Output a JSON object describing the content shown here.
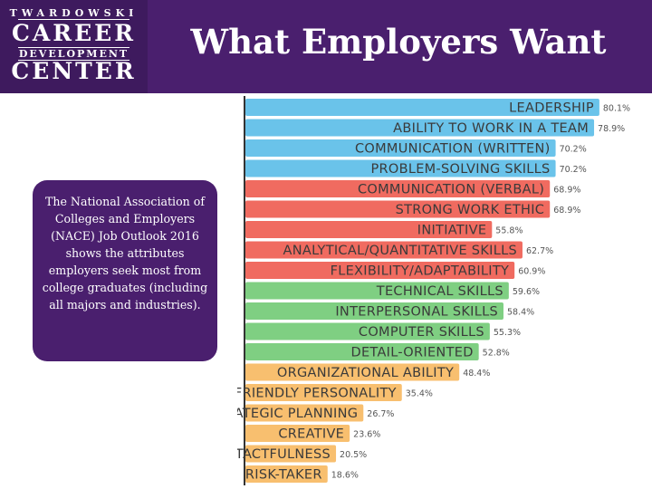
{
  "header": {
    "logo_lines": [
      "TWARDOWSKI",
      "CAREER",
      "DEVELOPMENT",
      "CENTER"
    ],
    "title": "What Employers Want"
  },
  "note": {
    "text": "The National Association of Colleges and Employers (NACE) Job Outlook 2016 shows the attributes employers seek most from college graduates (including all majors and industries)."
  },
  "colors": {
    "header": "#4a1f6e",
    "blue": "#6ac3ea",
    "red": "#f06b60",
    "green": "#7fcf82",
    "orange": "#f8bf6f"
  },
  "chart_data": {
    "type": "bar",
    "orientation": "horizontal",
    "categories": [
      "LEADERSHIP",
      "ABILITY TO WORK IN A TEAM",
      "COMMUNICATION (WRITTEN)",
      "PROBLEM-SOLVING SKILLS",
      "COMMUNICATION (VERBAL)",
      "STRONG WORK ETHIC",
      "INITIATIVE",
      "ANALYTICAL/QUANTITATIVE SKILLS",
      "FLEXIBILITY/ADAPTABILITY",
      "TECHNICAL SKILLS",
      "INTERPERSONAL SKILLS",
      "COMPUTER SKILLS",
      "DETAIL-ORIENTED",
      "ORGANIZATIONAL ABILITY",
      "FRIENDLY PERSONALITY",
      "STRATEGIC PLANNING",
      "CREATIVE",
      "TACTFULNESS",
      "RISK-TAKER"
    ],
    "values": [
      80.1,
      78.9,
      70.2,
      70.2,
      68.9,
      68.9,
      55.8,
      62.7,
      60.9,
      59.6,
      58.4,
      55.3,
      52.8,
      48.4,
      35.4,
      26.7,
      23.6,
      20.5,
      18.6
    ],
    "value_labels": [
      "80.1%",
      "78.9%",
      "70.2%",
      "70.2%",
      "68.9%",
      "68.9%",
      "55.8%",
      "62.7%",
      "60.9%",
      "59.6%",
      "58.4%",
      "55.3%",
      "52.8%",
      "48.4%",
      "35.4%",
      "26.7%",
      "23.6%",
      "20.5%",
      "18.6%"
    ],
    "groups": [
      "blue",
      "blue",
      "blue",
      "blue",
      "red",
      "red",
      "red",
      "red",
      "red",
      "green",
      "green",
      "green",
      "green",
      "orange",
      "orange",
      "orange",
      "orange",
      "orange",
      "orange"
    ],
    "xlim": [
      0,
      100
    ],
    "grid": false,
    "legend": "none"
  }
}
